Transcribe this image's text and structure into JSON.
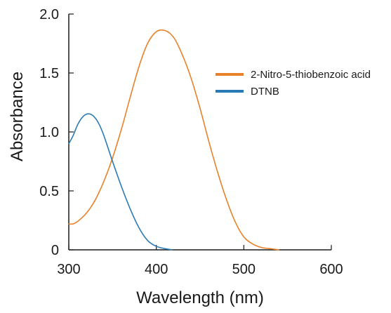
{
  "chart_data": {
    "type": "line",
    "title": "",
    "xlabel": "Wavelength (nm)",
    "ylabel": "Absorbance",
    "xlim": [
      300,
      600
    ],
    "ylim": [
      0,
      2.0
    ],
    "x_ticks": [
      300,
      400,
      500,
      600
    ],
    "x_tick_labels": [
      "300",
      "400",
      "500",
      "600"
    ],
    "y_ticks": [
      0,
      0.5,
      1.0,
      1.5,
      2.0
    ],
    "y_tick_labels": [
      "0",
      "0.5",
      "1.0",
      "1.5",
      "2.0"
    ],
    "grid": false,
    "legend_position": "right",
    "series": [
      {
        "name": "2-Nitro-5-thiobenzoic acid",
        "color": "#e8822a",
        "x": [
          300,
          305,
          310,
          320,
          330,
          340,
          350,
          360,
          370,
          380,
          390,
          400,
          410,
          420,
          430,
          440,
          450,
          460,
          470,
          480,
          490,
          500,
          510,
          520,
          530,
          540
        ],
        "y": [
          0.22,
          0.22,
          0.24,
          0.31,
          0.42,
          0.58,
          0.78,
          1.02,
          1.29,
          1.55,
          1.75,
          1.85,
          1.86,
          1.8,
          1.65,
          1.45,
          1.2,
          0.92,
          0.66,
          0.43,
          0.24,
          0.11,
          0.05,
          0.02,
          0.01,
          0.0
        ]
      },
      {
        "name": "DTNB",
        "color": "#2a7ab5",
        "x": [
          300,
          305,
          310,
          315,
          320,
          325,
          330,
          335,
          340,
          350,
          360,
          370,
          380,
          390,
          400,
          410,
          418
        ],
        "y": [
          0.9,
          0.97,
          1.06,
          1.12,
          1.15,
          1.15,
          1.12,
          1.06,
          0.97,
          0.75,
          0.54,
          0.35,
          0.19,
          0.08,
          0.03,
          0.01,
          0.0
        ]
      }
    ]
  }
}
